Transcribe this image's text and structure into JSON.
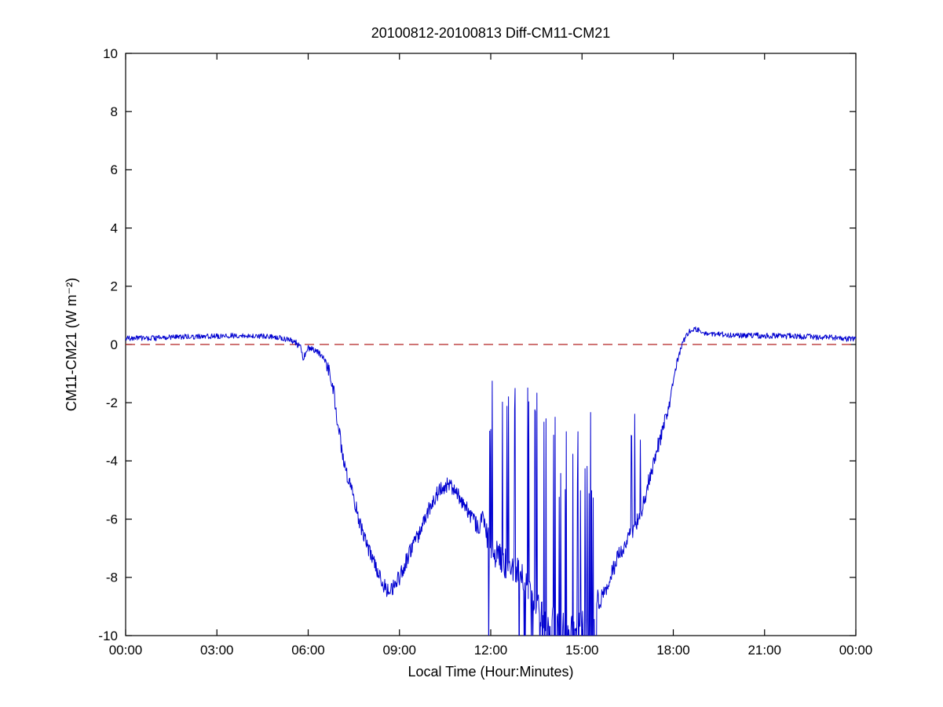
{
  "chart_data": {
    "type": "line",
    "title": "20100812-20100813 Diff-CM11-CM21",
    "xlabel": "Local Time (Hour:Minutes)",
    "ylabel": "CM11-CM21 (W m⁻²)",
    "x_ticks": [
      "00:00",
      "03:00",
      "06:00",
      "09:00",
      "12:00",
      "15:00",
      "18:00",
      "21:00",
      "00:00"
    ],
    "x_tick_hours": [
      0,
      3,
      6,
      9,
      12,
      15,
      18,
      21,
      24
    ],
    "xlim_hours": [
      0,
      24
    ],
    "y_ticks": [
      -10,
      -8,
      -6,
      -4,
      -2,
      0,
      2,
      4,
      6,
      8,
      10
    ],
    "ylim": [
      -10,
      10
    ],
    "grid": false,
    "legend": "none",
    "axis_color": "#000000",
    "zero_line": {
      "y": 0,
      "color": "#b22222",
      "style": "dashed"
    },
    "series": [
      {
        "name": "CM11-CM21 difference",
        "color": "#0000d0",
        "keypoints": [
          [
            0.0,
            0.2
          ],
          [
            0.5,
            0.22
          ],
          [
            1.0,
            0.22
          ],
          [
            1.5,
            0.25
          ],
          [
            2.0,
            0.27
          ],
          [
            2.5,
            0.27
          ],
          [
            3.0,
            0.28
          ],
          [
            3.5,
            0.3
          ],
          [
            4.0,
            0.3
          ],
          [
            4.5,
            0.28
          ],
          [
            5.0,
            0.24
          ],
          [
            5.4,
            0.15
          ],
          [
            5.6,
            0.05
          ],
          [
            5.75,
            -0.1
          ],
          [
            5.85,
            -0.5
          ],
          [
            5.95,
            -0.15
          ],
          [
            6.1,
            -0.15
          ],
          [
            6.3,
            -0.25
          ],
          [
            6.5,
            -0.45
          ],
          [
            6.7,
            -0.9
          ],
          [
            6.85,
            -1.7
          ],
          [
            7.0,
            -2.9
          ],
          [
            7.15,
            -3.9
          ],
          [
            7.3,
            -4.6
          ],
          [
            7.5,
            -5.3
          ],
          [
            7.7,
            -6.2
          ],
          [
            7.9,
            -6.8
          ],
          [
            8.1,
            -7.3
          ],
          [
            8.3,
            -7.9
          ],
          [
            8.5,
            -8.3
          ],
          [
            8.65,
            -8.5
          ],
          [
            8.8,
            -8.3
          ],
          [
            9.0,
            -8.0
          ],
          [
            9.2,
            -7.5
          ],
          [
            9.4,
            -7.0
          ],
          [
            9.6,
            -6.6
          ],
          [
            9.8,
            -6.1
          ],
          [
            10.0,
            -5.6
          ],
          [
            10.2,
            -5.2
          ],
          [
            10.4,
            -4.9
          ],
          [
            10.6,
            -4.8
          ],
          [
            10.8,
            -5.0
          ],
          [
            11.0,
            -5.3
          ],
          [
            11.2,
            -5.6
          ],
          [
            11.4,
            -6.0
          ],
          [
            11.6,
            -6.3
          ],
          [
            11.75,
            -5.9
          ],
          [
            11.9,
            -6.5
          ],
          [
            12.0,
            -7.0
          ],
          [
            12.5,
            -7.5
          ],
          [
            13.0,
            -8.0
          ],
          [
            13.5,
            -9.0
          ],
          [
            14.0,
            -9.5
          ],
          [
            14.5,
            -9.8
          ],
          [
            15.0,
            -9.6
          ],
          [
            15.2,
            -9.3
          ],
          [
            15.4,
            -9.2
          ],
          [
            15.6,
            -8.8
          ],
          [
            15.8,
            -8.3
          ],
          [
            16.0,
            -7.8
          ],
          [
            16.2,
            -7.3
          ],
          [
            16.5,
            -6.7
          ],
          [
            16.8,
            -6.1
          ],
          [
            17.0,
            -5.5
          ],
          [
            17.2,
            -4.7
          ],
          [
            17.4,
            -3.9
          ],
          [
            17.6,
            -3.1
          ],
          [
            17.8,
            -2.3
          ],
          [
            17.95,
            -1.5
          ],
          [
            18.1,
            -0.7
          ],
          [
            18.25,
            -0.15
          ],
          [
            18.4,
            0.25
          ],
          [
            18.6,
            0.55
          ],
          [
            18.8,
            0.5
          ],
          [
            19.0,
            0.42
          ],
          [
            19.5,
            0.35
          ],
          [
            20.0,
            0.32
          ],
          [
            21.0,
            0.3
          ],
          [
            22.0,
            0.28
          ],
          [
            23.0,
            0.25
          ],
          [
            24.0,
            0.18
          ]
        ],
        "noise_segments": [
          {
            "t0": 0.0,
            "t1": 5.6,
            "amp": 0.09
          },
          {
            "t0": 5.6,
            "t1": 6.6,
            "amp": 0.12
          },
          {
            "t0": 6.6,
            "t1": 11.85,
            "amp": 0.27
          },
          {
            "t0": 11.85,
            "t1": 15.55,
            "amp": 0.55
          },
          {
            "t0": 15.55,
            "t1": 17.9,
            "amp": 0.3
          },
          {
            "t0": 17.9,
            "t1": 18.5,
            "amp": 0.12
          },
          {
            "t0": 18.5,
            "t1": 24.0,
            "amp": 0.1
          }
        ],
        "spike_regions": [
          {
            "t0": 11.85,
            "t1": 13.7,
            "up_p": 0.2,
            "up_top": -1.0,
            "up_var": 2.0,
            "down_p": 0.1,
            "down_base": -11.8,
            "down_var": 1.5
          },
          {
            "t0": 13.7,
            "t1": 15.5,
            "up_p": 0.18,
            "up_top": -2.3,
            "up_var": 3.2,
            "down_p": 0.38,
            "down_base": -12.5,
            "down_var": 2.0
          },
          {
            "t0": 16.55,
            "t1": 17.35,
            "up_p": 0.05,
            "up_top": -2.2,
            "up_var": 1.2,
            "down_p": 0.0,
            "down_base": 0,
            "down_var": 0
          }
        ]
      }
    ]
  }
}
